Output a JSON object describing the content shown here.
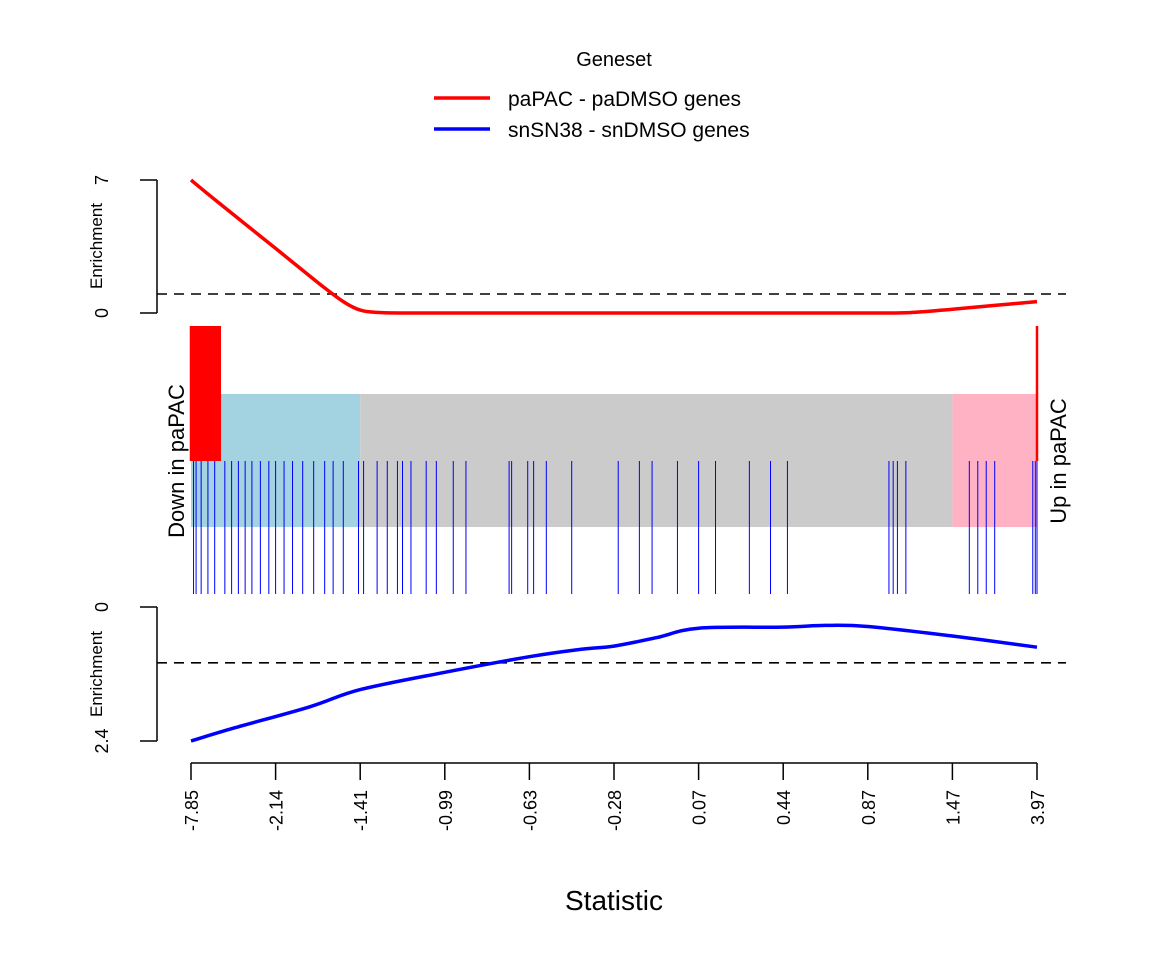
{
  "legend": {
    "title": "Geneset",
    "entries": [
      {
        "label": "paPAC - paDMSO genes",
        "color": "#ff0000"
      },
      {
        "label": "snSN38 - snDMSO genes",
        "color": "#0000ff"
      }
    ]
  },
  "chart_data": {
    "type": "line",
    "xlabel": "Statistic",
    "x_tick_labels": [
      "-7.85",
      "-2.14",
      "-1.41",
      "-0.99",
      "-0.63",
      "-0.28",
      "0.07",
      "0.44",
      "0.87",
      "1.47",
      "3.97"
    ],
    "top_panel": {
      "ylabel": "Enrichment",
      "y_tick_labels": [
        "0",
        "7"
      ],
      "ylim": [
        0,
        7
      ],
      "reference_line": 1.0,
      "series": [
        {
          "name": "paPAC - paDMSO genes",
          "color": "#ff0000",
          "x": [
            0,
            0.03,
            0.1,
            0.15,
            0.18,
            0.2,
            0.22,
            0.25,
            0.3,
            0.4,
            0.5,
            0.6,
            0.7,
            0.8,
            0.85,
            0.9,
            0.95,
            1.0
          ],
          "y": [
            7.0,
            5.9,
            3.4,
            1.6,
            0.6,
            0.15,
            0.03,
            0.0,
            0.0,
            0.0,
            0.0,
            0.0,
            0.0,
            0.0,
            0.02,
            0.2,
            0.4,
            0.6
          ]
        }
      ]
    },
    "bottom_panel": {
      "ylabel": "Enrichment",
      "y_tick_labels": [
        "0",
        "2.4"
      ],
      "ylim": [
        0,
        2.4
      ],
      "inverted": true,
      "reference_line": 1.0,
      "series": [
        {
          "name": "snSN38 - snDMSO genes",
          "color": "#0000ff",
          "x": [
            0,
            0.05,
            0.14,
            0.2,
            0.3,
            0.4,
            0.46,
            0.5,
            0.55,
            0.6,
            0.7,
            0.75,
            0.8,
            0.9,
            1.0
          ],
          "y": [
            2.4,
            2.17,
            1.79,
            1.48,
            1.17,
            0.89,
            0.76,
            0.7,
            0.55,
            0.38,
            0.36,
            0.33,
            0.35,
            0.52,
            0.72
          ]
        }
      ]
    },
    "barcode": {
      "left_label": "Down in paPAC",
      "right_label": "Up in paPAC",
      "regions": [
        {
          "from": 0.0,
          "to": 0.2,
          "color": "#a3d2e0"
        },
        {
          "from": 0.2,
          "to": 0.9,
          "color": "#cbcbcb"
        },
        {
          "from": 0.9,
          "to": 1.0,
          "color": "#ffb2c4"
        }
      ],
      "red_positions": [
        0,
        0.002,
        0.004,
        0.006,
        0.008,
        0.01,
        0.012,
        0.014,
        0.016,
        0.018,
        0.02,
        0.022,
        0.024,
        0.026,
        0.028,
        0.03,
        0.032,
        0.034,
        1.0
      ],
      "blue_positions": [
        0.003,
        0.006,
        0.012,
        0.02,
        0.028,
        0.04,
        0.048,
        0.056,
        0.064,
        0.072,
        0.082,
        0.092,
        0.1,
        0.11,
        0.12,
        0.132,
        0.145,
        0.158,
        0.168,
        0.18,
        0.198,
        0.204,
        0.22,
        0.232,
        0.244,
        0.25,
        0.26,
        0.278,
        0.29,
        0.31,
        0.325,
        0.376,
        0.379,
        0.398,
        0.405,
        0.42,
        0.45,
        0.505,
        0.53,
        0.545,
        0.575,
        0.6,
        0.62,
        0.66,
        0.685,
        0.705,
        0.825,
        0.83,
        0.835,
        0.845,
        0.92,
        0.93,
        0.94,
        0.95,
        0.995,
        0.998,
        1.0
      ]
    }
  }
}
